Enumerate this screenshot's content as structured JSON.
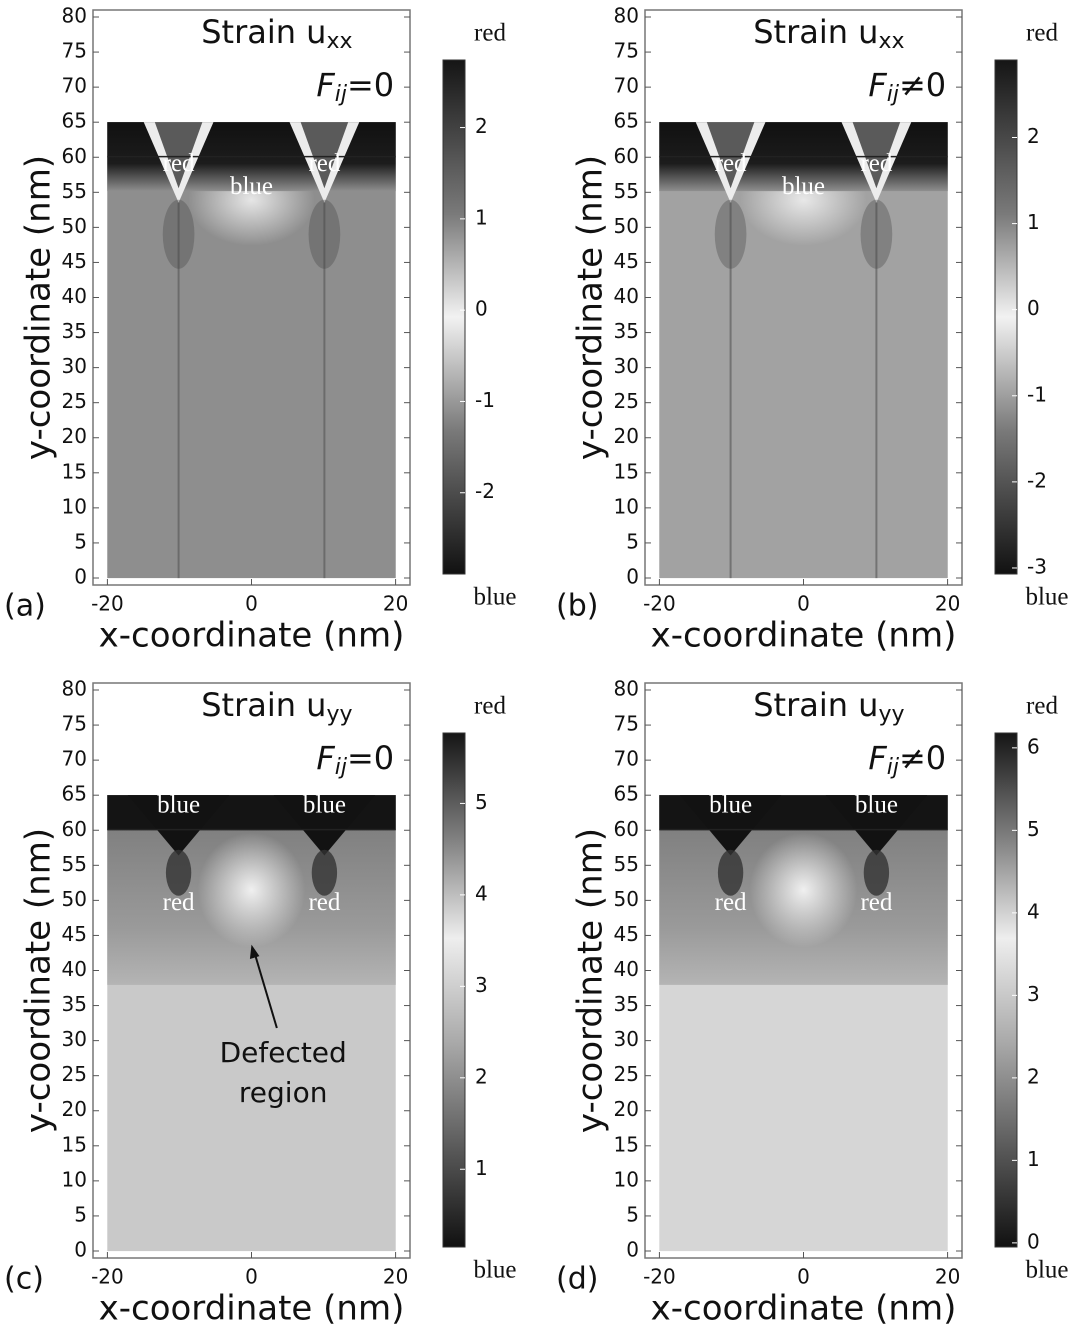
{
  "chart_data": [
    {
      "type": "heatmap",
      "panel_label": "(a)",
      "title": {
        "text": "Strain u",
        "sub": "xx"
      },
      "annotation": {
        "symbol": "F",
        "sub": "ij",
        "rest": "=0"
      },
      "xlabel": "x-coordinate (nm)",
      "ylabel": "y-coordinate (nm)",
      "xlim": [
        -22,
        22
      ],
      "xticks": [
        -20,
        0,
        20
      ],
      "ylim": [
        -1,
        81
      ],
      "yticks": [
        0,
        5,
        10,
        15,
        20,
        25,
        30,
        35,
        40,
        45,
        50,
        55,
        60,
        65,
        70,
        75,
        80
      ],
      "colorbar": {
        "lim": [
          -2.89,
          2.74
        ],
        "ticks": [
          -2,
          -1,
          0,
          1,
          2
        ],
        "top_label": "red",
        "bottom_label": "blue"
      },
      "region_labels": [
        "red",
        "blue",
        "red"
      ]
    },
    {
      "type": "heatmap",
      "panel_label": "(b)",
      "title": {
        "text": "Strain u",
        "sub": "xx"
      },
      "annotation": {
        "symbol": "F",
        "sub": "ij",
        "rest": "≠0"
      },
      "xlabel": "x-coordinate (nm)",
      "ylabel": "y-coordinate (nm)",
      "xlim": [
        -22,
        22
      ],
      "xticks": [
        -20,
        0,
        20
      ],
      "ylim": [
        -1,
        81
      ],
      "yticks": [
        0,
        5,
        10,
        15,
        20,
        25,
        30,
        35,
        40,
        45,
        50,
        55,
        60,
        65,
        70,
        75,
        80
      ],
      "colorbar": {
        "lim": [
          -3.07,
          2.9
        ],
        "ticks": [
          -3,
          -2,
          -1,
          0,
          1,
          2
        ],
        "top_label": "red",
        "bottom_label": "blue"
      },
      "region_labels": [
        "red",
        "blue",
        "red"
      ]
    },
    {
      "type": "heatmap",
      "panel_label": "(c)",
      "title": {
        "text": "Strain u",
        "sub": "yy"
      },
      "annotation": {
        "symbol": "F",
        "sub": "ij",
        "rest": "=0"
      },
      "xlabel": "x-coordinate (nm)",
      "ylabel": "y-coordinate (nm)",
      "xlim": [
        -22,
        22
      ],
      "xticks": [
        -20,
        0,
        20
      ],
      "ylim": [
        -1,
        81
      ],
      "yticks": [
        0,
        5,
        10,
        15,
        20,
        25,
        30,
        35,
        40,
        45,
        50,
        55,
        60,
        65,
        70,
        75,
        80
      ],
      "colorbar": {
        "lim": [
          0.15,
          5.77
        ],
        "ticks": [
          1,
          2,
          3,
          4,
          5
        ],
        "top_label": "red",
        "bottom_label": "blue"
      },
      "region_labels": [
        "blue",
        "blue",
        "red",
        "red"
      ],
      "callout": [
        "Defected",
        "region"
      ]
    },
    {
      "type": "heatmap",
      "panel_label": "(d)",
      "title": {
        "text": "Strain u",
        "sub": "yy"
      },
      "annotation": {
        "symbol": "F",
        "sub": "ij",
        "rest": "≠0"
      },
      "xlabel": "x-coordinate (nm)",
      "ylabel": "y-coordinate (nm)",
      "xlim": [
        -22,
        22
      ],
      "xticks": [
        -20,
        0,
        20
      ],
      "ylim": [
        -1,
        81
      ],
      "yticks": [
        0,
        5,
        10,
        15,
        20,
        25,
        30,
        35,
        40,
        45,
        50,
        55,
        60,
        65,
        70,
        75,
        80
      ],
      "colorbar": {
        "lim": [
          -0.05,
          6.18
        ],
        "ticks": [
          0,
          1,
          2,
          3,
          4,
          5,
          6
        ],
        "top_label": "red",
        "bottom_label": "blue"
      },
      "region_labels": [
        "blue",
        "blue",
        "red",
        "red"
      ]
    }
  ]
}
